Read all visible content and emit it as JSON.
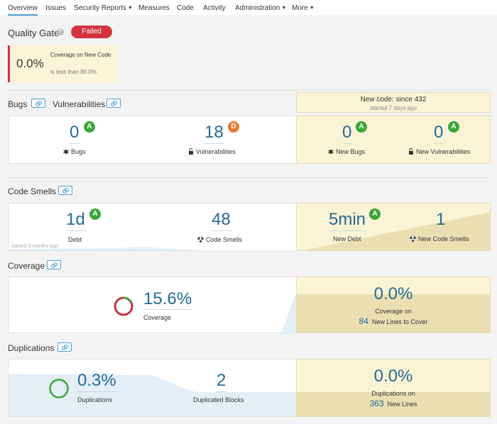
{
  "nav": {
    "overview": "Overview",
    "issues": "Issues",
    "security_reports": "Security Reports",
    "measures": "Measures",
    "code": "Code",
    "activity": "Activity",
    "administration": "Administration",
    "more": "More"
  },
  "quality_gate": {
    "title": "Quality Gate",
    "status": "Failed",
    "condition_value": "0.0%",
    "condition_metric": "Coverage on New Code",
    "condition_threshold": "is less than 80.0%"
  },
  "new_code": {
    "title": "New code: since 432",
    "started": "started 7 days ago"
  },
  "bugs_section": {
    "bugs_title": "Bugs",
    "vulnerabilities_title": "Vulnerabilities",
    "bugs_value": "0",
    "bugs_rating": "A",
    "bugs_label": "Bugs",
    "vuln_value": "18",
    "vuln_rating": "D",
    "vuln_label": "Vulnerabilities",
    "new_bugs_value": "0",
    "new_bugs_rating": "A",
    "new_bugs_label": "New Bugs",
    "new_vuln_value": "0",
    "new_vuln_rating": "A",
    "new_vuln_label": "New Vulnerabilities"
  },
  "code_smells": {
    "title": "Code Smells",
    "debt_value": "1d",
    "debt_rating": "A",
    "debt_label": "Debt",
    "smells_value": "48",
    "smells_label": "Code Smells",
    "started": "started 6 months ago",
    "new_debt_value": "5min",
    "new_debt_rating": "A",
    "new_debt_label": "New Debt",
    "new_smells_value": "1",
    "new_smells_label": "New Code Smells"
  },
  "coverage": {
    "title": "Coverage",
    "value": "15.6%",
    "label": "Coverage",
    "new_value": "0.0%",
    "new_label": "Coverage on",
    "lines_count": "84",
    "lines_label": "New Lines to Cover",
    "fraction": 0.156
  },
  "duplications": {
    "title": "Duplications",
    "value": "0.3%",
    "label": "Duplications",
    "blocks_value": "2",
    "blocks_label": "Duplicated Blocks",
    "new_value": "0.0%",
    "new_label": "Duplications on",
    "lines_count": "363",
    "lines_label": "New Lines"
  },
  "colors": {
    "accent": "#4b9fd5",
    "value_blue": "#236a97",
    "failed": "#d4333f",
    "rating_a": "#3aa63a",
    "rating_d": "#e07b31",
    "new_code_bg": "#fbf3d5"
  },
  "icons": [
    "help-icon",
    "link-icon",
    "bug-icon",
    "lock-icon",
    "radiation-icon",
    "donut-icon"
  ]
}
